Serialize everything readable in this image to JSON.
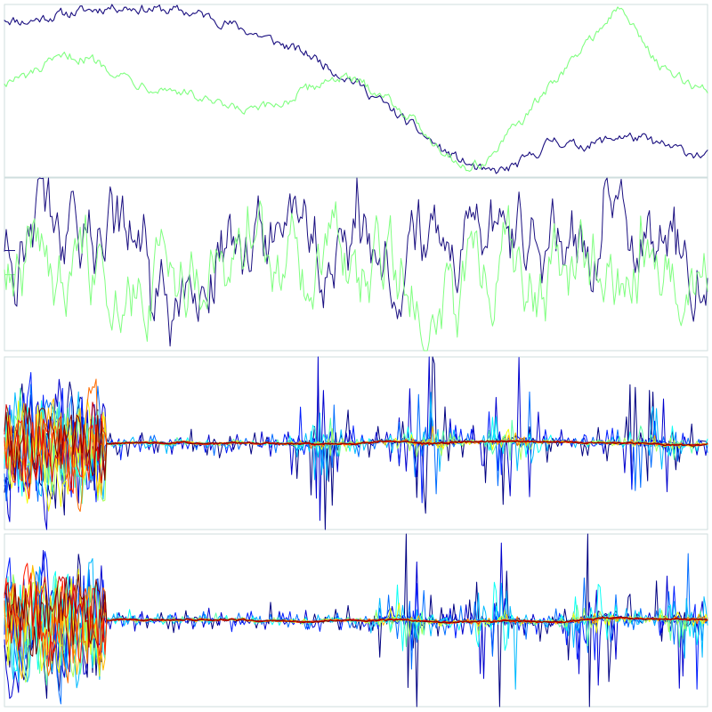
{
  "chart_data": [
    {
      "type": "line",
      "title": "",
      "xlabel": "",
      "ylabel": "",
      "grid": false,
      "legend": "none",
      "x": {
        "start": 0,
        "end": 399
      },
      "ylim": [
        0,
        1
      ],
      "series": [
        {
          "color": "#1a0f80",
          "anchors": [
            0.92,
            0.9,
            0.93,
            0.95,
            0.97,
            0.99,
            0.98,
            0.97,
            0.96,
            0.94,
            0.9,
            0.85,
            0.8,
            0.75,
            0.7,
            0.62,
            0.55,
            0.45,
            0.35,
            0.25,
            0.15,
            0.08,
            0.02,
            0.05,
            0.12,
            0.22,
            0.18,
            0.2,
            0.24,
            0.22,
            0.18,
            0.15,
            0.12
          ]
        },
        {
          "color": "#80ff80",
          "anchors": [
            0.55,
            0.58,
            0.65,
            0.7,
            0.68,
            0.62,
            0.55,
            0.52,
            0.5,
            0.45,
            0.4,
            0.38,
            0.4,
            0.45,
            0.52,
            0.58,
            0.55,
            0.5,
            0.4,
            0.28,
            0.15,
            0.05,
            0.1,
            0.25,
            0.4,
            0.55,
            0.7,
            0.85,
            0.98,
            0.8,
            0.62,
            0.55,
            0.5
          ]
        }
      ]
    },
    {
      "type": "line",
      "title": "",
      "xlabel": "",
      "ylabel": "",
      "grid": false,
      "legend": "none",
      "x": {
        "start": 0,
        "end": 399
      },
      "ylim": [
        -1,
        1
      ],
      "series": [
        {
          "color": "#1a0f80",
          "kind": "oscillating",
          "mean": 0.2,
          "amplitude": 0.75
        },
        {
          "color": "#80ff80",
          "kind": "oscillating",
          "mean": -0.1,
          "amplitude": 0.75
        }
      ]
    },
    {
      "type": "line",
      "title": "",
      "xlabel": "",
      "ylabel": "",
      "grid": false,
      "legend": "none",
      "x": {
        "start": 0,
        "end": 399
      },
      "ylim": [
        -1,
        1
      ],
      "colormap": "jet",
      "n_series": 14,
      "burst_end_x": 58,
      "spike_centers": [
        0.45,
        0.6,
        0.72,
        0.92
      ]
    },
    {
      "type": "line",
      "title": "",
      "xlabel": "",
      "ylabel": "",
      "grid": false,
      "legend": "none",
      "x": {
        "start": 0,
        "end": 399
      },
      "ylim": [
        -1,
        1
      ],
      "colormap": "jet",
      "n_series": 14,
      "burst_end_x": 58,
      "spike_centers": [
        0.57,
        0.7,
        0.84,
        0.97
      ]
    }
  ]
}
